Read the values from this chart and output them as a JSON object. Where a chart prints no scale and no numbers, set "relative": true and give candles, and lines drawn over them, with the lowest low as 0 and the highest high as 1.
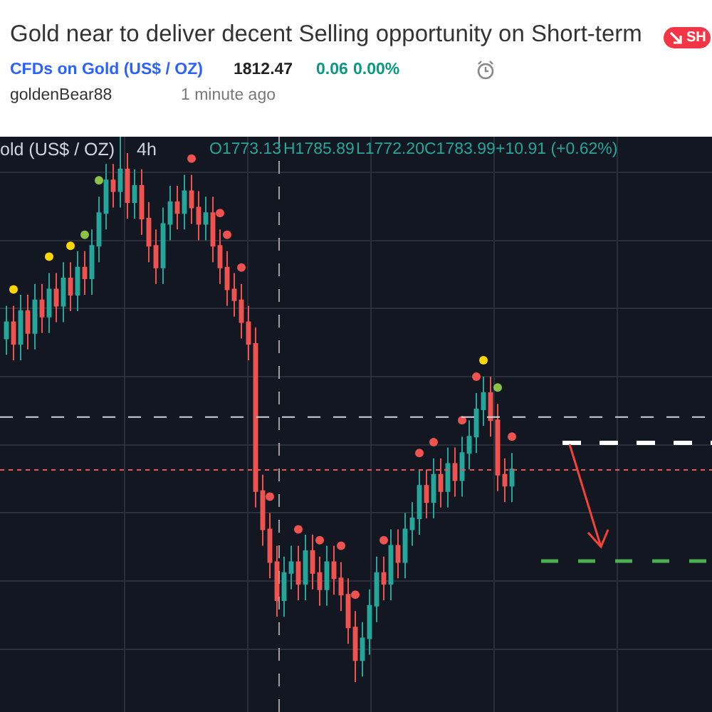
{
  "chart_data": {
    "type": "candlestick",
    "relative": true,
    "title": "Gold near to deliver decent Selling opportunity on Short-term",
    "annotations": [
      "CFDs on Gold (US$ / OZ)",
      "1812.47",
      "0.06",
      "0.00%",
      "goldenBear88",
      "1 minute ago",
      "SH",
      "old (US$ / OZ)",
      "4h",
      "O1773.13",
      "H1785.89",
      "L1772.20",
      "C1783.99",
      "+10.91 (+0.62%)"
    ],
    "categories": [
      null,
      null,
      null,
      null,
      null,
      null,
      null,
      null,
      null,
      null,
      null,
      null,
      null,
      null,
      null,
      null,
      null,
      null,
      null,
      null,
      null,
      null,
      null,
      null,
      null,
      null,
      null,
      null,
      null,
      null,
      null,
      null,
      null,
      null,
      null,
      null,
      null,
      null,
      null,
      null,
      null,
      null,
      null,
      null,
      null,
      null,
      null,
      null,
      null,
      null,
      null,
      null,
      null,
      null,
      null,
      null,
      null,
      null,
      null,
      null,
      null,
      null,
      null,
      null,
      null,
      null,
      null,
      null,
      null,
      null,
      null,
      null
    ],
    "grid": true,
    "ohlc": [
      [
        0.63,
        0.69,
        0.6,
        0.66
      ],
      [
        0.66,
        0.69,
        0.59,
        0.62
      ],
      [
        0.62,
        0.71,
        0.59,
        0.68
      ],
      [
        0.68,
        0.71,
        0.61,
        0.64
      ],
      [
        0.64,
        0.73,
        0.61,
        0.7
      ],
      [
        0.7,
        0.73,
        0.64,
        0.67
      ],
      [
        0.67,
        0.75,
        0.64,
        0.72
      ],
      [
        0.72,
        0.75,
        0.66,
        0.69
      ],
      [
        0.69,
        0.77,
        0.66,
        0.74
      ],
      [
        0.74,
        0.77,
        0.68,
        0.71
      ],
      [
        0.71,
        0.79,
        0.68,
        0.76
      ],
      [
        0.76,
        0.79,
        0.71,
        0.74
      ],
      [
        0.74,
        0.83,
        0.71,
        0.8
      ],
      [
        0.8,
        0.89,
        0.77,
        0.86
      ],
      [
        0.86,
        0.95,
        0.83,
        0.92
      ],
      [
        0.92,
        0.95,
        0.87,
        0.9
      ],
      [
        0.9,
        1.0,
        0.87,
        0.94
      ],
      [
        0.94,
        0.97,
        0.85,
        0.88
      ],
      [
        0.88,
        0.94,
        0.85,
        0.91
      ],
      [
        0.91,
        0.94,
        0.82,
        0.85
      ],
      [
        0.85,
        0.88,
        0.77,
        0.8
      ],
      [
        0.8,
        0.83,
        0.73,
        0.76
      ],
      [
        0.76,
        0.87,
        0.73,
        0.84
      ],
      [
        0.84,
        0.91,
        0.81,
        0.88
      ],
      [
        0.88,
        0.91,
        0.83,
        0.86
      ],
      [
        0.86,
        0.93,
        0.83,
        0.9
      ],
      [
        0.9,
        0.93,
        0.84,
        0.87
      ],
      [
        0.87,
        0.9,
        0.81,
        0.84
      ],
      [
        0.84,
        0.89,
        0.81,
        0.86
      ],
      [
        0.86,
        0.89,
        0.77,
        0.8
      ],
      [
        0.8,
        0.83,
        0.73,
        0.76
      ],
      [
        0.76,
        0.79,
        0.69,
        0.72
      ],
      [
        0.72,
        0.75,
        0.67,
        0.7
      ],
      [
        0.7,
        0.73,
        0.63,
        0.66
      ],
      [
        0.66,
        0.69,
        0.59,
        0.62
      ],
      [
        0.62,
        0.65,
        0.32,
        0.35
      ],
      [
        0.35,
        0.38,
        0.25,
        0.28
      ],
      [
        0.28,
        0.31,
        0.19,
        0.22
      ],
      [
        0.22,
        0.25,
        0.12,
        0.15
      ],
      [
        0.15,
        0.23,
        0.12,
        0.2
      ],
      [
        0.2,
        0.25,
        0.17,
        0.22
      ],
      [
        0.22,
        0.25,
        0.15,
        0.18
      ],
      [
        0.18,
        0.27,
        0.15,
        0.24
      ],
      [
        0.24,
        0.27,
        0.17,
        0.2
      ],
      [
        0.2,
        0.23,
        0.14,
        0.17
      ],
      [
        0.17,
        0.25,
        0.14,
        0.22
      ],
      [
        0.22,
        0.25,
        0.16,
        0.19
      ],
      [
        0.19,
        0.22,
        0.13,
        0.16
      ],
      [
        0.16,
        0.19,
        0.07,
        0.1
      ],
      [
        0.1,
        0.13,
        0.0,
        0.04
      ],
      [
        0.04,
        0.11,
        0.01,
        0.08
      ],
      [
        0.08,
        0.17,
        0.05,
        0.14
      ],
      [
        0.14,
        0.23,
        0.11,
        0.2
      ],
      [
        0.2,
        0.23,
        0.15,
        0.18
      ],
      [
        0.18,
        0.28,
        0.15,
        0.25
      ],
      [
        0.25,
        0.28,
        0.19,
        0.22
      ],
      [
        0.22,
        0.31,
        0.19,
        0.28
      ],
      [
        0.28,
        0.33,
        0.25,
        0.3
      ],
      [
        0.3,
        0.39,
        0.27,
        0.36
      ],
      [
        0.36,
        0.39,
        0.3,
        0.33
      ],
      [
        0.33,
        0.41,
        0.3,
        0.38
      ],
      [
        0.38,
        0.41,
        0.32,
        0.35
      ],
      [
        0.35,
        0.43,
        0.32,
        0.4
      ],
      [
        0.4,
        0.43,
        0.34,
        0.37
      ],
      [
        0.37,
        0.45,
        0.34,
        0.42
      ],
      [
        0.42,
        0.48,
        0.39,
        0.45
      ],
      [
        0.45,
        0.53,
        0.42,
        0.5
      ],
      [
        0.5,
        0.56,
        0.47,
        0.53
      ],
      [
        0.53,
        0.56,
        0.45,
        0.48
      ],
      [
        0.48,
        0.51,
        0.35,
        0.38
      ],
      [
        0.38,
        0.41,
        0.33,
        0.36
      ],
      [
        0.36,
        0.42,
        0.33,
        0.39
      ]
    ],
    "series": [
      {
        "type": "scatter",
        "values": [
          null,
          0.72,
          null,
          null,
          null,
          null,
          0.78,
          null,
          null,
          0.8,
          null,
          0.82,
          null,
          0.92,
          null,
          null,
          null,
          null,
          null,
          null,
          null,
          null,
          null,
          null,
          null,
          null,
          0.96,
          null,
          null,
          null,
          0.86,
          0.82,
          null,
          0.76,
          null,
          null,
          null,
          0.34,
          null,
          null,
          null,
          0.28,
          null,
          null,
          0.26,
          null,
          null,
          0.25,
          null,
          0.16,
          null,
          null,
          null,
          0.26,
          null,
          null,
          null,
          null,
          0.42,
          null,
          0.44,
          null,
          null,
          null,
          0.48,
          null,
          0.56,
          0.59,
          null,
          0.54,
          null,
          0.45
        ],
        "colors": [
          null,
          "#ffd600",
          null,
          null,
          null,
          null,
          "#ffd600",
          null,
          null,
          "#ffd600",
          null,
          "#8bc34a",
          null,
          "#8bc34a",
          null,
          null,
          null,
          null,
          null,
          null,
          null,
          null,
          null,
          null,
          null,
          null,
          "#ef5350",
          null,
          null,
          null,
          "#ef5350",
          "#ef5350",
          null,
          "#ef5350",
          null,
          null,
          null,
          "#ef5350",
          null,
          null,
          null,
          "#ef5350",
          null,
          null,
          "#ef5350",
          null,
          null,
          "#ef5350",
          null,
          "#ef5350",
          null,
          null,
          null,
          "#ef5350",
          null,
          null,
          null,
          null,
          "#ef5350",
          null,
          "#ef5350",
          null,
          null,
          null,
          "#ef5350",
          null,
          "#ef5350",
          "#ffd600",
          null,
          "#8bc34a",
          null,
          "#ef5350"
        ]
      }
    ],
    "ref_lines": [
      {
        "axis": "y",
        "value": 0.486,
        "color": "#d1d4dc",
        "line_style": "dashed"
      },
      {
        "axis": "y",
        "value": 0.389,
        "color": "#ef5350",
        "line_style": "dotted"
      }
    ]
  }
}
